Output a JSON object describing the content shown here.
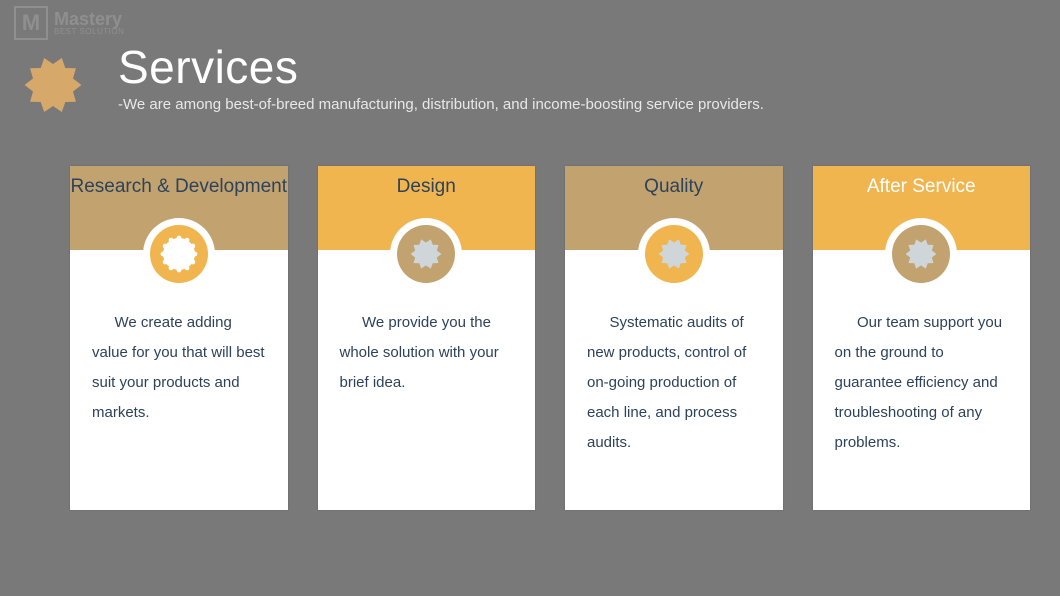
{
  "logo": {
    "mark": "M",
    "title": "Mastery",
    "sub": "BEST SOLUTION"
  },
  "header": {
    "title": "Services",
    "subtitle": "-We are among best-of-breed manufacturing, distribution, and income-boosting service providers.",
    "gear_color": "#d6a96a"
  },
  "colors": {
    "page_bg": "#79797a",
    "tan": "#c2a36f",
    "yellow": "#f0b54f",
    "text_dark": "#2d425b",
    "white": "#ffffff",
    "gear_grey": "#cfd6da"
  },
  "cards": [
    {
      "title": "Research & Development",
      "header_bg": "#c2a36f",
      "header_text_color": "#2d425b",
      "icon_circle_bg": "#f0b54f",
      "icon_gear_color": "#ffffff",
      "icon_style": "ring",
      "body": "We create adding value for you that will best suit your products and markets."
    },
    {
      "title": "Design",
      "header_bg": "#f0b54f",
      "header_text_color": "#2d425b",
      "icon_circle_bg": "#c2a36f",
      "icon_gear_color": "#cfd6da",
      "icon_style": "gear",
      "body": "We provide you the whole solution with your brief idea."
    },
    {
      "title": "Quality",
      "header_bg": "#c2a36f",
      "header_text_color": "#2d425b",
      "icon_circle_bg": "#f0b54f",
      "icon_gear_color": "#cfd6da",
      "icon_style": "gear",
      "body": "Systematic audits of new products, control of on-going production of each line, and process audits."
    },
    {
      "title": "After Service",
      "header_bg": "#f0b54f",
      "header_text_color": "#ffffff",
      "icon_circle_bg": "#c2a36f",
      "icon_gear_color": "#cfd6da",
      "icon_style": "gear",
      "body": "Our team support you on the ground to guarantee efficiency and troubleshooting of any problems."
    }
  ]
}
